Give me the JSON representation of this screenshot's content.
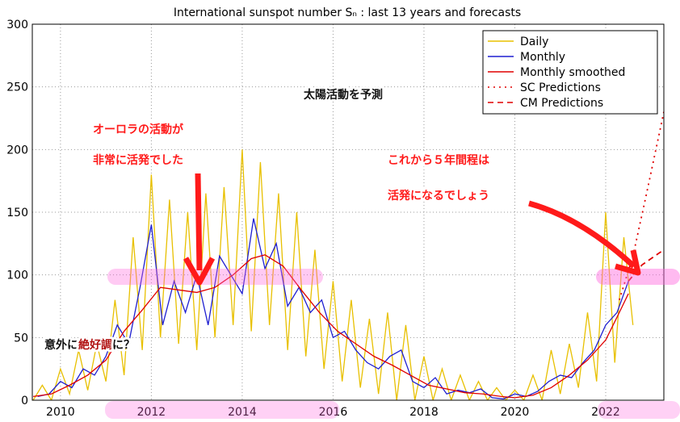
{
  "chart_data": {
    "type": "line",
    "title": "International sunspot number Sₙ : last 13 years and forecasts",
    "xlim": [
      2009.38,
      2023.28
    ],
    "xticks": [
      2010,
      2012,
      2014,
      2016,
      2018,
      2020,
      2022
    ],
    "ylim": [
      0,
      300
    ],
    "yticks": [
      0,
      50,
      100,
      150,
      200,
      250,
      300
    ],
    "grid": true,
    "legend": "upper right",
    "series": [
      {
        "name": "Daily",
        "color": "#e8c000",
        "style": "solid",
        "x": [
          2009.4,
          2009.6,
          2009.8,
          2010.0,
          2010.2,
          2010.4,
          2010.6,
          2010.8,
          2011.0,
          2011.2,
          2011.4,
          2011.6,
          2011.8,
          2012.0,
          2012.2,
          2012.4,
          2012.6,
          2012.8,
          2013.0,
          2013.2,
          2013.4,
          2013.6,
          2013.8,
          2014.0,
          2014.2,
          2014.4,
          2014.6,
          2014.8,
          2015.0,
          2015.2,
          2015.4,
          2015.6,
          2015.8,
          2016.0,
          2016.2,
          2016.4,
          2016.6,
          2016.8,
          2017.0,
          2017.2,
          2017.4,
          2017.6,
          2017.8,
          2018.0,
          2018.2,
          2018.4,
          2018.6,
          2018.8,
          2019.0,
          2019.2,
          2019.4,
          2019.6,
          2019.8,
          2020.0,
          2020.2,
          2020.4,
          2020.6,
          2020.8,
          2021.0,
          2021.2,
          2021.4,
          2021.6,
          2021.8,
          2022.0,
          2022.2,
          2022.4,
          2022.6
        ],
        "values": [
          0,
          12,
          0,
          25,
          5,
          40,
          8,
          45,
          15,
          80,
          20,
          130,
          40,
          180,
          50,
          160,
          45,
          150,
          40,
          165,
          50,
          170,
          60,
          200,
          55,
          190,
          60,
          165,
          40,
          150,
          35,
          120,
          25,
          95,
          15,
          80,
          10,
          65,
          5,
          70,
          0,
          60,
          0,
          35,
          0,
          25,
          0,
          20,
          0,
          15,
          0,
          10,
          0,
          8,
          0,
          20,
          0,
          40,
          5,
          45,
          10,
          70,
          15,
          150,
          30,
          130,
          60
        ]
      },
      {
        "name": "Monthly",
        "color": "#1f1fd0",
        "style": "solid",
        "x": [
          2009.5,
          2009.75,
          2010.0,
          2010.25,
          2010.5,
          2010.75,
          2011.0,
          2011.25,
          2011.5,
          2011.75,
          2012.0,
          2012.25,
          2012.5,
          2012.75,
          2013.0,
          2013.25,
          2013.5,
          2013.75,
          2014.0,
          2014.25,
          2014.5,
          2014.75,
          2015.0,
          2015.25,
          2015.5,
          2015.75,
          2016.0,
          2016.25,
          2016.5,
          2016.75,
          2017.0,
          2017.25,
          2017.5,
          2017.75,
          2018.0,
          2018.25,
          2018.5,
          2018.75,
          2019.0,
          2019.25,
          2019.5,
          2019.75,
          2020.0,
          2020.25,
          2020.5,
          2020.75,
          2021.0,
          2021.25,
          2021.5,
          2021.75,
          2022.0,
          2022.25,
          2022.5
        ],
        "values": [
          3,
          5,
          15,
          10,
          25,
          20,
          35,
          60,
          45,
          90,
          140,
          60,
          95,
          70,
          100,
          60,
          115,
          100,
          85,
          145,
          105,
          125,
          75,
          90,
          70,
          80,
          50,
          55,
          40,
          30,
          25,
          35,
          40,
          15,
          10,
          18,
          5,
          8,
          6,
          9,
          2,
          1,
          5,
          3,
          7,
          15,
          20,
          18,
          30,
          40,
          60,
          70,
          95
        ]
      },
      {
        "name": "Monthly smoothed",
        "color": "#e00000",
        "style": "solid",
        "x": [
          2009.4,
          2009.8,
          2010.2,
          2010.6,
          2011.0,
          2011.4,
          2011.8,
          2012.2,
          2012.6,
          2013.0,
          2013.4,
          2013.8,
          2014.2,
          2014.5,
          2014.9,
          2015.3,
          2015.7,
          2016.1,
          2016.5,
          2016.9,
          2017.3,
          2017.7,
          2018.1,
          2018.5,
          2018.9,
          2019.3,
          2019.7,
          2020.0,
          2020.4,
          2020.8,
          2021.2,
          2021.6,
          2022.0,
          2022.3,
          2022.5
        ],
        "values": [
          3,
          5,
          12,
          20,
          32,
          55,
          72,
          90,
          88,
          86,
          90,
          100,
          113,
          116,
          107,
          88,
          70,
          55,
          45,
          35,
          28,
          20,
          12,
          9,
          6,
          5,
          3,
          2,
          4,
          10,
          20,
          32,
          48,
          70,
          85
        ]
      },
      {
        "name": "SC Predictions",
        "color": "#e00000",
        "style": "dotted",
        "x": [
          2022.3,
          2022.6,
          2022.9,
          2023.28
        ],
        "values": [
          80,
          115,
          165,
          230
        ]
      },
      {
        "name": "CM Predictions",
        "color": "#e00000",
        "style": "dashed",
        "x": [
          2022.5,
          2022.8,
          2023.28
        ],
        "values": [
          95,
          108,
          120
        ]
      }
    ],
    "annotations": [
      "太陽活動を予測",
      "オーロラの活動が",
      "非常に活発でした",
      "これから５年間程は",
      "活発になるでしょう",
      "意外に",
      "絶好調",
      "に？"
    ]
  }
}
